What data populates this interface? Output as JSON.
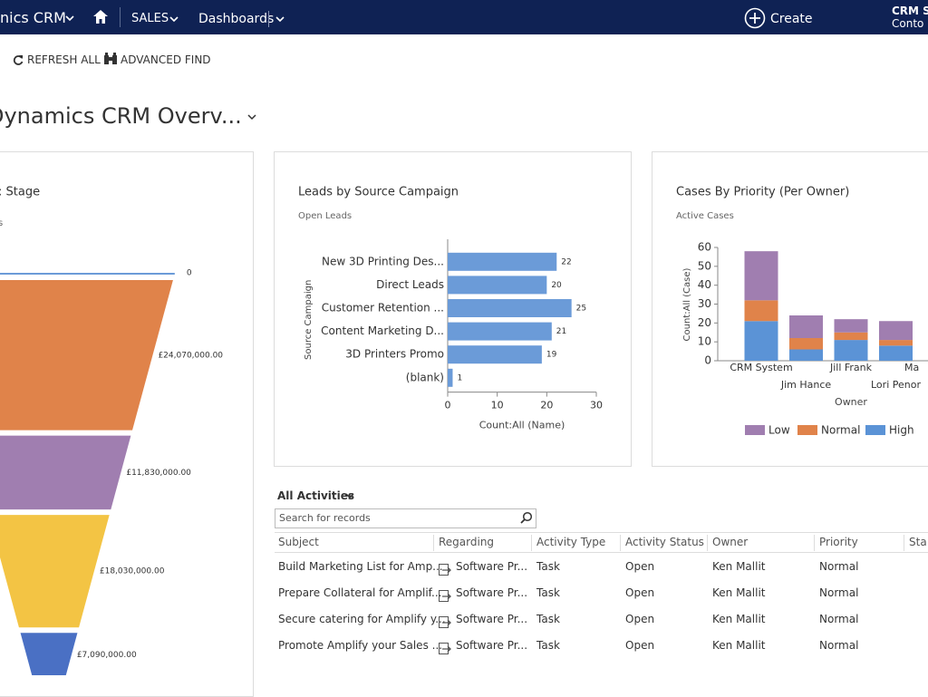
{
  "nav": {
    "app": "nics CRM",
    "menu": "SALES",
    "area": "Dashboards",
    "create": "Create",
    "user": "CRM S",
    "org": "Conto"
  },
  "toolbar": [
    "REFRESH ALL",
    "ADVANCED FIND"
  ],
  "dashboard_title": "Dynamics CRM Overv...",
  "chart_data": [
    {
      "type": "funnel",
      "title": ": Stage",
      "subtitle": "s",
      "values": [
        0,
        24070000,
        11830000,
        18030000,
        7090000
      ],
      "value_labels": [
        "0",
        "£24,070,000.00",
        "£11,830,000.00",
        "£18,030,000.00",
        "£7,090,000.00"
      ],
      "colors": [
        "#6b9bd8",
        "#e0834a",
        "#a07eb0",
        "#f3c444",
        "#4a70c4"
      ]
    },
    {
      "type": "hbar",
      "title": "Leads by Source Campaign",
      "subtitle": "Open Leads",
      "categories": [
        "New 3D Printing Des...",
        "Direct Leads",
        "Customer Retention ...",
        "Content Marketing D...",
        "3D Printers Promo",
        "(blank)"
      ],
      "values": [
        22,
        20,
        25,
        21,
        19,
        1
      ],
      "color": "#6b9bd8",
      "xlim": [
        0,
        30
      ],
      "xticks": [
        0,
        10,
        20,
        30
      ],
      "xlabel": "Count:All (Name)",
      "ylabel": "Source Campaign"
    },
    {
      "type": "stacked",
      "title": "Cases By Priority (Per Owner)",
      "subtitle": "Active Cases",
      "categories": [
        "CRM System",
        "Jim Hance",
        "Jill Frank",
        "Lori Penor",
        "Ma"
      ],
      "series": [
        {
          "name": "Low",
          "color": "#a07eb0",
          "values": [
            26,
            12,
            7,
            10,
            null
          ]
        },
        {
          "name": "Normal",
          "color": "#e0834a",
          "values": [
            11,
            6,
            4,
            3,
            null
          ]
        },
        {
          "name": "High",
          "color": "#5b93d6",
          "values": [
            21,
            6,
            11,
            8,
            null
          ]
        }
      ],
      "ylim": [
        0,
        60
      ],
      "yticks": [
        0,
        10,
        20,
        30,
        40,
        50,
        60
      ],
      "xlabel": "Owner",
      "ylabel": "Count:All (Case)"
    }
  ],
  "activities": {
    "title": "All Activities",
    "search": "Search for records",
    "columns": [
      "Subject",
      "Regarding",
      "Activity Type",
      "Activity Status",
      "Owner",
      "Priority",
      "Sta"
    ],
    "rows": [
      [
        "Build Marketing List for Amp...",
        "Software Pr...",
        "Task",
        "Open",
        "Ken Mallit",
        "Normal"
      ],
      [
        "Prepare Collateral for Amplif...",
        "Software Pr...",
        "Task",
        "Open",
        "Ken Mallit",
        "Normal"
      ],
      [
        "Secure catering for Amplify y...",
        "Software Pr...",
        "Task",
        "Open",
        "Ken Mallit",
        "Normal"
      ],
      [
        "Promote Amplify your Sales ...",
        "Software Pr...",
        "Task",
        "Open",
        "Ken Mallit",
        "Normal"
      ]
    ]
  }
}
